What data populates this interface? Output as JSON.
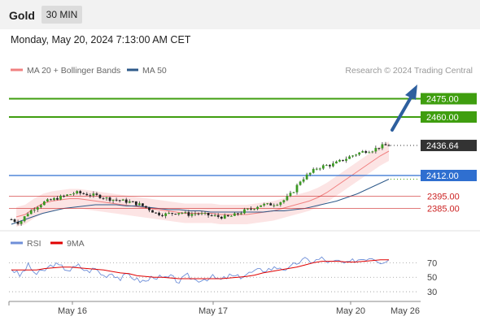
{
  "header": {
    "symbol": "Gold",
    "interval": "30 MIN",
    "datetime": "Monday, May 20, 2024 7:13:00 AM CET"
  },
  "legend": {
    "items": [
      {
        "label": "MA 20 + Bollinger Bands",
        "color": "#f08080"
      },
      {
        "label": "MA 50",
        "color": "#2e5a8a"
      }
    ],
    "credit": "Research © 2024 Trading Central"
  },
  "rsi_legend": {
    "items": [
      {
        "label": "RSI",
        "color": "#6f8fd8"
      },
      {
        "label": "9MA",
        "color": "#e00000"
      }
    ]
  },
  "chart_data": [
    {
      "type": "candlestick",
      "yrange": [
        2368,
        2490
      ],
      "levels": [
        {
          "value": 2475.0,
          "label": "2475.00",
          "color": "#3f9e0f",
          "style": "resistance"
        },
        {
          "value": 2460.0,
          "label": "2460.00",
          "color": "#3f9e0f",
          "style": "resistance"
        },
        {
          "value": 2436.64,
          "label": "2436.64",
          "color": "#333333",
          "style": "last-price"
        },
        {
          "value": 2412.0,
          "label": "2412.00",
          "color": "#2f6fd0",
          "style": "pivot"
        },
        {
          "value": 2395.0,
          "label": "2395.00",
          "color": "#cc2222",
          "style": "support"
        },
        {
          "value": 2385.0,
          "label": "2385.00",
          "color": "#cc2222",
          "style": "support"
        }
      ],
      "x_ticks": [
        "May 16",
        "May 17",
        "May 20",
        "May 26"
      ],
      "price_path": [
        2376,
        2373,
        2381,
        2386,
        2390,
        2392,
        2394,
        2396,
        2398,
        2397,
        2396,
        2395,
        2393,
        2392,
        2391,
        2390,
        2388,
        2385,
        2381,
        2380,
        2381,
        2382,
        2380,
        2381,
        2380,
        2379,
        2378,
        2378,
        2380,
        2383,
        2385,
        2388,
        2388,
        2389,
        2392,
        2398,
        2408,
        2413,
        2418,
        2420,
        2421,
        2424,
        2427,
        2430,
        2432,
        2433,
        2436,
        2437
      ],
      "ma20_path": [
        2378,
        2380,
        2385,
        2389,
        2391,
        2392,
        2393,
        2393,
        2392,
        2391,
        2390,
        2389,
        2388,
        2387,
        2386,
        2385,
        2384,
        2383,
        2382,
        2381,
        2381,
        2381,
        2381,
        2380,
        2380,
        2380,
        2380,
        2381,
        2382,
        2383,
        2385,
        2387,
        2389,
        2391,
        2394,
        2398,
        2403,
        2408,
        2413,
        2418,
        2423,
        2428,
        2432
      ],
      "ma50_path": [
        2372,
        2375,
        2378,
        2381,
        2383,
        2385,
        2386,
        2387,
        2388,
        2388,
        2388,
        2387,
        2387,
        2386,
        2385,
        2384,
        2384,
        2383,
        2383,
        2382,
        2382,
        2382,
        2382,
        2382,
        2382,
        2383,
        2383,
        2384,
        2385,
        2387,
        2389,
        2391,
        2394,
        2397,
        2401,
        2405,
        2409
      ]
    },
    {
      "type": "line",
      "name": "RSI panel",
      "yticks": [
        70,
        50,
        30
      ],
      "yrange": [
        20,
        85
      ],
      "rsi_path": [
        62,
        52,
        66,
        54,
        60,
        68,
        64,
        60,
        66,
        58,
        62,
        52,
        56,
        48,
        54,
        46,
        44,
        52,
        48,
        50,
        44,
        52,
        46,
        48,
        50,
        46,
        52,
        50,
        54,
        58,
        60,
        62,
        64,
        60,
        70,
        74,
        72,
        76,
        70,
        72,
        68,
        74,
        76,
        78,
        72,
        74
      ],
      "ma9_path": [
        60,
        60,
        60,
        60,
        62,
        63,
        64,
        64,
        63,
        62,
        61,
        60,
        58,
        56,
        55,
        52,
        51,
        50,
        50,
        49,
        48,
        48,
        48,
        48,
        48,
        48,
        49,
        50,
        51,
        53,
        56,
        58,
        60,
        62,
        64,
        67,
        70,
        72,
        72,
        72,
        71,
        71,
        72,
        73,
        74,
        74
      ]
    }
  ]
}
